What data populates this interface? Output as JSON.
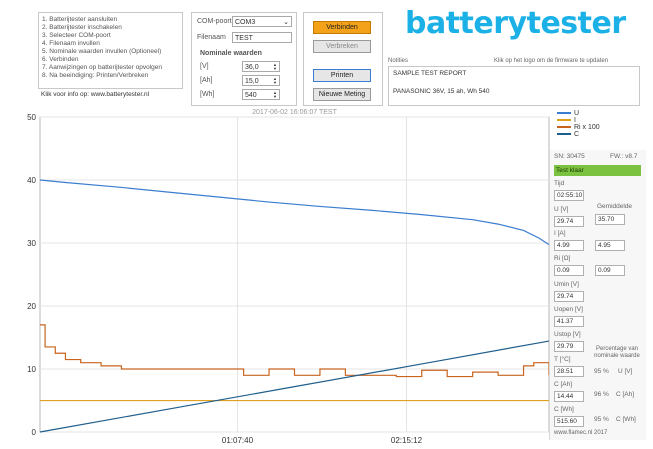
{
  "instructions": {
    "steps": [
      "1. Batterijtester aansluiten",
      "2. Batterijtester inschakelen",
      "3. Selecteer COM-poort",
      "4. Filenaam invullen",
      "5. Nominale waarden invullen (Optioneel)",
      "6. Verbinden",
      "7. Aanwijzingen op batterijtester opvolgen",
      "8. Na beeindiging: Printen/Verbreken"
    ],
    "info": "Klik voor info op: www.batterytester.nl"
  },
  "settings": {
    "com_label": "COM-poort",
    "com_value": "COM3",
    "file_label": "Filenaam",
    "file_value": "TEST",
    "nominal_title": "Nominale waarden",
    "v_label": "[V]",
    "v_value": "36,0",
    "ah_label": "[Ah]",
    "ah_value": "15,0",
    "wh_label": "[Wh]",
    "wh_value": "540"
  },
  "buttons": {
    "connect": "Verbinden",
    "disconnect": "Verbreken",
    "print": "Printen",
    "new": "Nieuwe Meting"
  },
  "logo": {
    "text": "batterytester",
    "hint": "Klik op het logo om de firmware te updaten"
  },
  "notes": {
    "label": "Notities",
    "line1": "SAMPLE TEST REPORT",
    "line2": "PANASONIC 36V, 15 ah, Wh 540"
  },
  "chart_data": {
    "type": "line",
    "title": "2017-06-02 16:06:07 TEST",
    "ylim": [
      0,
      50
    ],
    "yticks": [
      "0",
      "10",
      "20",
      "30",
      "40",
      "50"
    ],
    "xticks": [
      "01:07:40",
      "02:15:12"
    ],
    "grid": true,
    "legend_position": "top-right",
    "series": [
      {
        "name": "U",
        "color": "#3b7dd0",
        "points": [
          [
            0,
            40.0
          ],
          [
            0.05,
            39.6
          ],
          [
            0.15,
            38.9
          ],
          [
            0.25,
            38.1
          ],
          [
            0.35,
            37.3
          ],
          [
            0.45,
            36.5
          ],
          [
            0.55,
            35.8
          ],
          [
            0.65,
            35.2
          ],
          [
            0.75,
            34.5
          ],
          [
            0.85,
            33.7
          ],
          [
            0.9,
            33.0
          ],
          [
            0.95,
            32.0
          ],
          [
            0.98,
            30.8
          ],
          [
            1.0,
            29.74
          ]
        ]
      },
      {
        "name": "I",
        "color": "#e2a020",
        "points": [
          [
            0,
            4.99
          ],
          [
            1.0,
            4.99
          ]
        ]
      },
      {
        "name": "Ri x 100",
        "color": "#c8641e",
        "points": [
          [
            0,
            17
          ],
          [
            0.01,
            13.5
          ],
          [
            0.03,
            12.5
          ],
          [
            0.05,
            11.5
          ],
          [
            0.08,
            11
          ],
          [
            0.12,
            10.5
          ],
          [
            0.16,
            10
          ],
          [
            0.25,
            10
          ],
          [
            0.35,
            10
          ],
          [
            0.4,
            9
          ],
          [
            0.45,
            10
          ],
          [
            0.5,
            9
          ],
          [
            0.55,
            10
          ],
          [
            0.6,
            9
          ],
          [
            0.65,
            9
          ],
          [
            0.7,
            8.8
          ],
          [
            0.75,
            9.8
          ],
          [
            0.8,
            8.8
          ],
          [
            0.85,
            9.5
          ],
          [
            0.9,
            9
          ],
          [
            0.95,
            10.5
          ],
          [
            0.97,
            11
          ],
          [
            1.0,
            9
          ]
        ]
      },
      {
        "name": "C",
        "color": "#1f5e8c",
        "points": [
          [
            0,
            0
          ],
          [
            0.25,
            3.6
          ],
          [
            0.5,
            7.2
          ],
          [
            0.75,
            10.8
          ],
          [
            1.0,
            14.44
          ]
        ]
      }
    ]
  },
  "right_panel": {
    "sn": "SN: 30475",
    "fw": "FW.: v8.7",
    "status": "Test klaar",
    "tijd_label": "Tijd",
    "tijd_value": "02:55:10",
    "gemiddelde_label": "Gemiddelde",
    "u_label": "U [V]",
    "u_value": "29.74",
    "u_avg": "35.70",
    "i_label": "I [A]",
    "i_value": "4.99",
    "i_avg": "4.95",
    "ri_label": "Ri [Ω]",
    "ri_value": "0.09",
    "ri_avg": "0.09",
    "umin_label": "Umin [V]",
    "umin_value": "29.74",
    "uopen_label": "Uopen [V]",
    "uopen_value": "41.37",
    "ustop_label": "Ustop [V]",
    "ustop_value": "29.79",
    "temp_label": "T [°C]",
    "temp_value": "28.51",
    "cah_label": "C [Ah]",
    "cah_value": "14.44",
    "cwh_label": "C [Wh]",
    "cwh_value": "515.60",
    "pct_title": "Percentage van nominale waarde",
    "pct_u": "95 %",
    "pct_u_label": "U [V]",
    "pct_cah": "96 %",
    "pct_cah_label": "C [Ah]",
    "pct_cwh": "95 %",
    "pct_cwh_label": "C [Wh]",
    "footer": "www.flamec.nl  2017"
  }
}
